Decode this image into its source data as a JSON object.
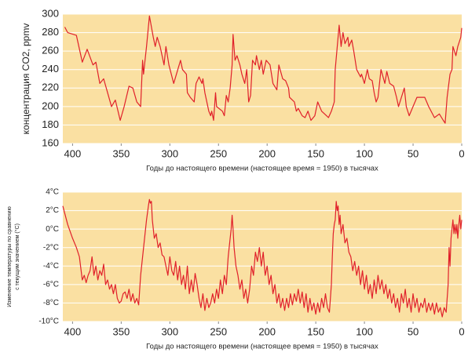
{
  "chart_data": [
    {
      "type": "line",
      "ylabel": "концентрация CO2, ppmv",
      "xlabel": "Годы до настоящего времени (настоящее время = 1950) в тысячах",
      "color": "#e0202a",
      "background": "#fae0a2",
      "grid": true,
      "xlim": [
        410,
        0
      ],
      "xticks": [
        400,
        350,
        300,
        250,
        200,
        150,
        100,
        50,
        0
      ],
      "ylim": [
        160,
        300
      ],
      "yticks": [
        160,
        180,
        200,
        220,
        240,
        260,
        280,
        300
      ],
      "x": [
        408,
        405,
        396,
        390,
        385,
        379,
        376,
        372,
        368,
        364,
        360,
        356,
        351,
        347,
        342,
        338,
        334,
        330,
        328,
        327,
        324,
        321,
        317,
        315,
        313,
        310,
        306,
        304,
        301,
        296,
        289,
        287,
        283,
        282,
        279,
        275,
        273,
        270,
        267,
        266,
        264,
        262,
        260,
        258,
        257,
        255,
        253,
        252,
        246,
        244,
        242,
        240,
        238,
        236,
        235,
        233,
        231,
        228,
        226,
        223,
        221,
        219,
        217,
        215,
        212,
        211,
        208,
        206,
        204,
        201,
        197,
        194,
        190,
        188,
        184,
        181,
        178,
        177,
        172,
        170,
        168,
        164,
        161,
        158,
        155,
        151,
        148,
        144,
        139,
        137,
        134,
        131,
        130,
        126,
        124,
        122,
        120,
        117,
        116,
        113,
        111,
        108,
        104,
        103,
        100,
        97,
        95,
        92,
        90,
        88,
        86,
        83,
        79,
        77,
        74,
        70,
        67,
        65,
        62,
        59,
        57,
        54,
        50,
        46,
        38,
        34,
        28,
        23,
        19,
        17,
        15,
        12,
        10,
        9,
        6,
        4,
        1,
        0
      ],
      "values": [
        286,
        280,
        277,
        248,
        262,
        245,
        248,
        225,
        230,
        215,
        200,
        207,
        185,
        200,
        222,
        220,
        205,
        200,
        250,
        235,
        265,
        298,
        275,
        265,
        275,
        265,
        245,
        265,
        245,
        225,
        250,
        240,
        235,
        215,
        210,
        205,
        225,
        232,
        225,
        230,
        215,
        205,
        195,
        190,
        195,
        185,
        215,
        200,
        195,
        190,
        212,
        205,
        220,
        245,
        278,
        250,
        255,
        245,
        235,
        225,
        240,
        205,
        212,
        250,
        245,
        255,
        240,
        250,
        235,
        250,
        245,
        225,
        218,
        245,
        230,
        228,
        220,
        210,
        205,
        195,
        198,
        190,
        188,
        195,
        185,
        190,
        205,
        195,
        190,
        188,
        195,
        205,
        240,
        288,
        265,
        280,
        268,
        275,
        265,
        272,
        260,
        240,
        232,
        235,
        225,
        240,
        230,
        228,
        215,
        205,
        210,
        240,
        225,
        238,
        225,
        222,
        210,
        200,
        210,
        220,
        200,
        190,
        200,
        210,
        210,
        200,
        188,
        192,
        185,
        182,
        210,
        235,
        240,
        265,
        255,
        265,
        275,
        285
      ]
    },
    {
      "type": "line",
      "ylabel": [
        "Изменение температуры по сравнению",
        "с текущим значением (°C)"
      ],
      "xlabel": "Годы до настоящего времени (настоящее время = 1950) в тысячах",
      "color": "#e0202a",
      "background": "#fae0a2",
      "grid": true,
      "xlim": [
        410,
        0
      ],
      "xticks": [
        400,
        350,
        300,
        250,
        200,
        150,
        100,
        50,
        0
      ],
      "ylim": [
        -10,
        4
      ],
      "yticks": [
        {
          "value": -10,
          "label": "-10°C"
        },
        {
          "value": -8,
          "label": "-8°C"
        },
        {
          "value": -6,
          "label": "-6°C"
        },
        {
          "value": -4,
          "label": "-4°C"
        },
        {
          "value": -2,
          "label": "-2°C"
        },
        {
          "value": 0,
          "label": "0°C"
        },
        {
          "value": 2,
          "label": "2°C"
        },
        {
          "value": 4,
          "label": "4°C"
        }
      ],
      "x": [
        410,
        405,
        400,
        396,
        393,
        390,
        388,
        386,
        384,
        382,
        380,
        378,
        376,
        374,
        372,
        370,
        368,
        366,
        364,
        362,
        360,
        358,
        356,
        354,
        352,
        350,
        348,
        346,
        344,
        342,
        340,
        338,
        336,
        334,
        332,
        330,
        328,
        326,
        324,
        322,
        321,
        320,
        319,
        318,
        316,
        314,
        312,
        310,
        308,
        306,
        304,
        302,
        300,
        298,
        296,
        294,
        292,
        290,
        288,
        286,
        284,
        282,
        280,
        278,
        276,
        274,
        272,
        270,
        268,
        266,
        264,
        262,
        260,
        258,
        256,
        254,
        252,
        250,
        248,
        246,
        244,
        242,
        240,
        238,
        237,
        236,
        235,
        234,
        232,
        230,
        228,
        226,
        224,
        222,
        220,
        218,
        216,
        214,
        212,
        210,
        208,
        206,
        204,
        202,
        200,
        198,
        196,
        194,
        192,
        190,
        188,
        186,
        184,
        182,
        180,
        178,
        176,
        174,
        172,
        170,
        168,
        166,
        164,
        162,
        160,
        158,
        156,
        154,
        152,
        150,
        148,
        146,
        144,
        142,
        140,
        138,
        136,
        134,
        133,
        132,
        131,
        130,
        129,
        128,
        127,
        126,
        125,
        124,
        122,
        120,
        118,
        116,
        114,
        112,
        110,
        108,
        106,
        104,
        102,
        100,
        98,
        96,
        94,
        92,
        90,
        88,
        86,
        84,
        82,
        80,
        78,
        76,
        74,
        72,
        70,
        68,
        66,
        64,
        62,
        60,
        58,
        56,
        54,
        52,
        50,
        48,
        46,
        44,
        42,
        40,
        38,
        36,
        34,
        32,
        30,
        28,
        26,
        24,
        22,
        20,
        18,
        16,
        14,
        13,
        12,
        11,
        10,
        9,
        8,
        7,
        6,
        5,
        4,
        3,
        2,
        1,
        0
      ],
      "values": [
        2.5,
        0.5,
        -1,
        -2,
        -3,
        -5.5,
        -5,
        -5.8,
        -5,
        -4.5,
        -3,
        -5,
        -4,
        -5.5,
        -4.5,
        -5,
        -3.8,
        -6,
        -5.5,
        -6.5,
        -6,
        -7,
        -6,
        -7.5,
        -8,
        -7.8,
        -7,
        -6.8,
        -7.5,
        -6.5,
        -7.8,
        -7,
        -8,
        -7.5,
        -8.2,
        -5,
        -3,
        -1,
        1,
        2.5,
        3.2,
        2.8,
        3,
        1,
        -1,
        -0.5,
        -2,
        -1.5,
        -2.8,
        -3,
        -4,
        -5,
        -3,
        -4.5,
        -5,
        -3.5,
        -5.5,
        -4,
        -6,
        -5,
        -6.5,
        -4,
        -7,
        -5.5,
        -6.8,
        -4.8,
        -6,
        -7.5,
        -8.5,
        -7,
        -8.8,
        -7.5,
        -8.5,
        -8,
        -7,
        -8,
        -6.5,
        -7.5,
        -5.5,
        -7,
        -5,
        -6,
        -3,
        -1,
        0,
        1.5,
        0,
        -2,
        -4,
        -5,
        -6.5,
        -5.5,
        -7.5,
        -6.5,
        -8,
        -6.5,
        -4,
        -5,
        -2.5,
        -3.5,
        -2,
        -4,
        -2.5,
        -5,
        -4,
        -6,
        -5,
        -7,
        -6,
        -8,
        -7,
        -8.5,
        -7.5,
        -8.8,
        -7.5,
        -8.5,
        -7,
        -8.2,
        -7,
        -7.8,
        -6.5,
        -8,
        -6.8,
        -8.5,
        -7,
        -9,
        -7.5,
        -8.8,
        -8,
        -9.2,
        -8,
        -9,
        -7.5,
        -8.5,
        -7,
        -8.5,
        -9,
        -6,
        -3,
        -0.5,
        0.5,
        1,
        3,
        2,
        2.5,
        0.5,
        1.5,
        -0.5,
        0.5,
        -1.5,
        -1,
        -2.5,
        -3,
        -4.5,
        -3.5,
        -5,
        -4,
        -6,
        -4.5,
        -6.5,
        -5,
        -7,
        -6,
        -7.5,
        -5.5,
        -7,
        -5,
        -6.5,
        -5.5,
        -7,
        -6,
        -7.5,
        -6.5,
        -8,
        -7,
        -8.5,
        -7.5,
        -9,
        -7,
        -8,
        -6.5,
        -8.5,
        -7.5,
        -9,
        -7,
        -8.5,
        -7.5,
        -9,
        -8,
        -8.5,
        -7.5,
        -9,
        -8,
        -8.8,
        -8,
        -9.2,
        -8,
        -9,
        -8.5,
        -9.5,
        -8.5,
        -9,
        -6,
        -2,
        -4,
        -1,
        0,
        1,
        -0.5,
        0.5,
        -0.5,
        0.5,
        -1,
        0.5,
        1.5,
        0,
        1
      ]
    }
  ]
}
